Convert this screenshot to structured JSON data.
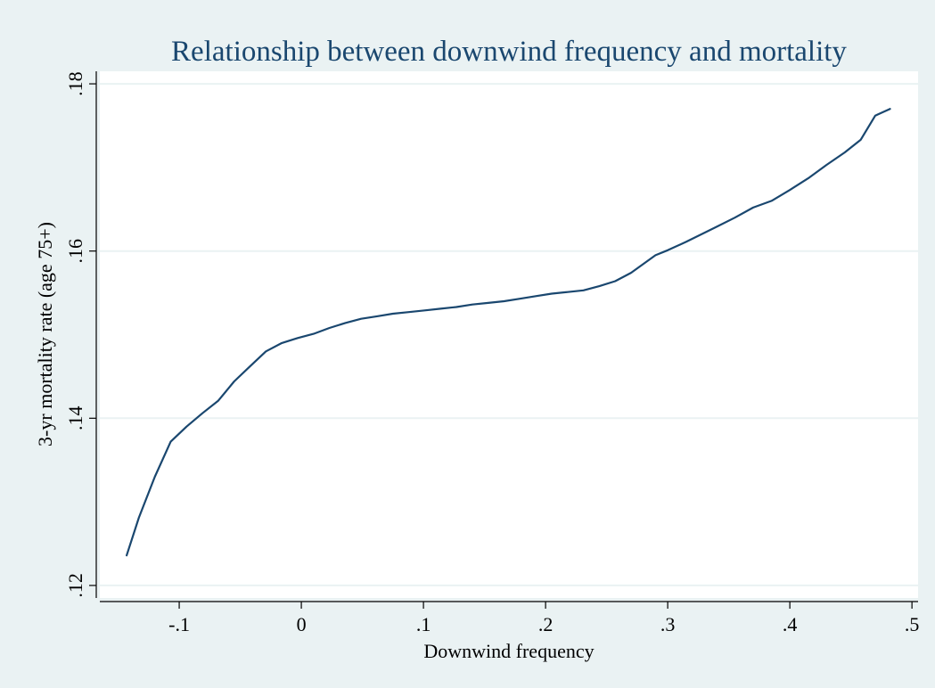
{
  "chart_data": {
    "type": "line",
    "title": "Relationship between downwind frequency and mortality",
    "xlabel": "Downwind frequency",
    "ylabel": "3-yr mortality rate (age 75+)",
    "xlim": [
      -0.165,
      0.505
    ],
    "ylim": [
      0.1185,
      0.1815
    ],
    "xticks": [
      {
        "value": -0.1,
        "label": "-.1"
      },
      {
        "value": 0,
        "label": "0"
      },
      {
        "value": 0.1,
        "label": ".1"
      },
      {
        "value": 0.2,
        "label": ".2"
      },
      {
        "value": 0.3,
        "label": ".3"
      },
      {
        "value": 0.4,
        "label": ".4"
      },
      {
        "value": 0.5,
        "label": ".5"
      }
    ],
    "yticks": [
      {
        "value": 0.12,
        "label": ".12"
      },
      {
        "value": 0.14,
        "label": ".14"
      },
      {
        "value": 0.16,
        "label": ".16"
      },
      {
        "value": 0.18,
        "label": ".18"
      }
    ],
    "grid": "horizontal",
    "colors": {
      "line": "#1a476f",
      "grid": "#eaf2f3",
      "plot_bg": "#ffffff",
      "page_bg": "#eaf2f3",
      "title": "#1a476f"
    },
    "series": [
      {
        "x": [
          -0.143,
          -0.133,
          -0.12,
          -0.107,
          -0.094,
          -0.081,
          -0.068,
          -0.055,
          -0.042,
          -0.029,
          -0.016,
          -0.003,
          0.01,
          0.023,
          0.036,
          0.049,
          0.062,
          0.075,
          0.088,
          0.101,
          0.114,
          0.127,
          0.14,
          0.153,
          0.166,
          0.179,
          0.192,
          0.205,
          0.218,
          0.231,
          0.244,
          0.257,
          0.27,
          0.29,
          0.3,
          0.315,
          0.34,
          0.355,
          0.37,
          0.385,
          0.4,
          0.415,
          0.43,
          0.445,
          0.458,
          0.47,
          0.482
        ],
        "y": [
          0.1236,
          0.1281,
          0.133,
          0.1372,
          0.139,
          0.1406,
          0.1421,
          0.1444,
          0.1462,
          0.148,
          0.149,
          0.1496,
          0.1501,
          0.1508,
          0.1514,
          0.1519,
          0.1522,
          0.1525,
          0.1527,
          0.1529,
          0.1531,
          0.1533,
          0.1536,
          0.1538,
          0.154,
          0.1543,
          0.1546,
          0.1549,
          0.1551,
          0.1553,
          0.1558,
          0.1564,
          0.1574,
          0.1595,
          0.1601,
          0.1611,
          0.1629,
          0.164,
          0.1652,
          0.166,
          0.1673,
          0.1687,
          0.1703,
          0.1718,
          0.1733,
          0.1762,
          0.177
        ]
      }
    ]
  }
}
